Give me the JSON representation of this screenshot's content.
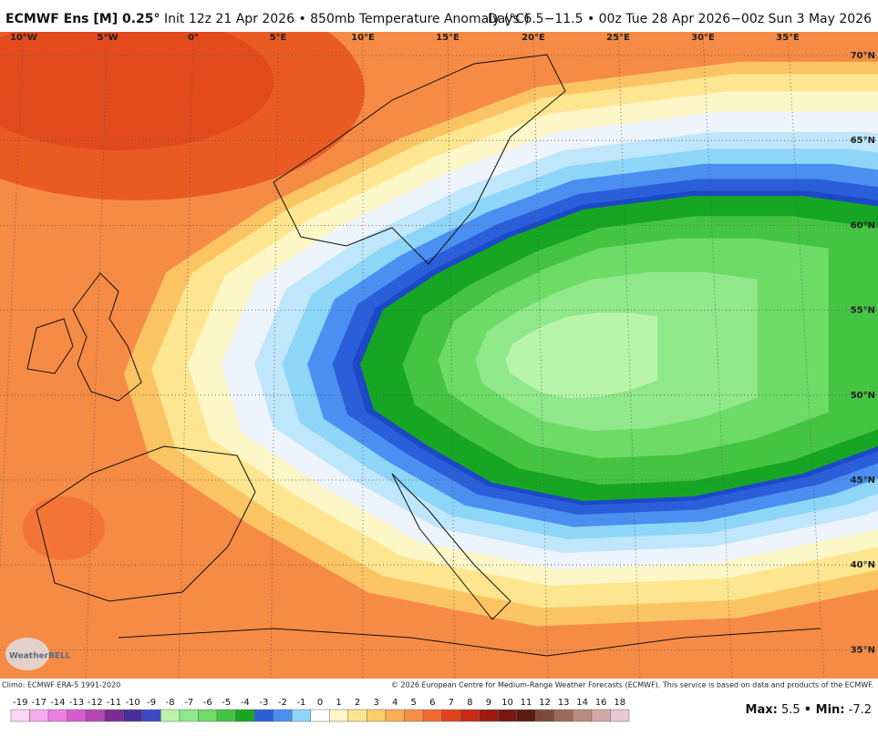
{
  "header": {
    "title_bold": "ECMWF Ens [M] 0.25°",
    "title_rest": "Init 12z 21 Apr 2026 • 850mb Temperature Anomaly (°C)",
    "valid": "Days 6.5−11.5 • 00z Tue 28 Apr 2026−00z Sun 3 May 2026"
  },
  "map": {
    "lon_labels": [
      "10°W",
      "5°W",
      "0°",
      "5°E",
      "10°E",
      "15°E",
      "20°E",
      "25°E",
      "30°E",
      "35°E"
    ],
    "lat_labels": [
      "70°N",
      "65°N",
      "60°N",
      "55°N",
      "50°N",
      "45°N",
      "40°N",
      "35°N"
    ],
    "logo": "WeatherBELL"
  },
  "footer": {
    "climo": "Climo: ECMWF ERA-5 1991-2020",
    "copyright": "© 2026 European Centre for Medium-Range Weather Forecasts (ECMWF). This service is based on data and products of the ECMWF."
  },
  "colorbar": {
    "labels": [
      -19,
      -17,
      -14,
      -13,
      -12,
      -11,
      -10,
      -9,
      -8,
      -7,
      -6,
      -5,
      -4,
      -3,
      -2,
      -1,
      0,
      1,
      2,
      3,
      4,
      5,
      6,
      7,
      8,
      9,
      10,
      11,
      12,
      13,
      14,
      16,
      18
    ],
    "colors": [
      "#fdd5f5",
      "#f7aaee",
      "#ec7fe0",
      "#d75ccc",
      "#b445b0",
      "#7b2d93",
      "#4a2e9a",
      "#3f48c2",
      "#b8f5a8",
      "#8fe88a",
      "#6cdc66",
      "#45c443",
      "#17a624",
      "#2b5fd9",
      "#4b8ff0",
      "#8ed6f7",
      "#ffffff",
      "#fdf6c6",
      "#fbe58f",
      "#fdcd6a",
      "#fcae55",
      "#f78e44",
      "#f26a30",
      "#e2431c",
      "#c72a15",
      "#9c1b10",
      "#7a1510",
      "#5c1a10",
      "#7d4a3a",
      "#9c6a5a",
      "#b98a7f",
      "#d2a9a6",
      "#e8c8d3"
    ]
  },
  "stats": {
    "max_label": "Max:",
    "max": 5.5,
    "min_label": "• Min:",
    "min": -7.2
  }
}
